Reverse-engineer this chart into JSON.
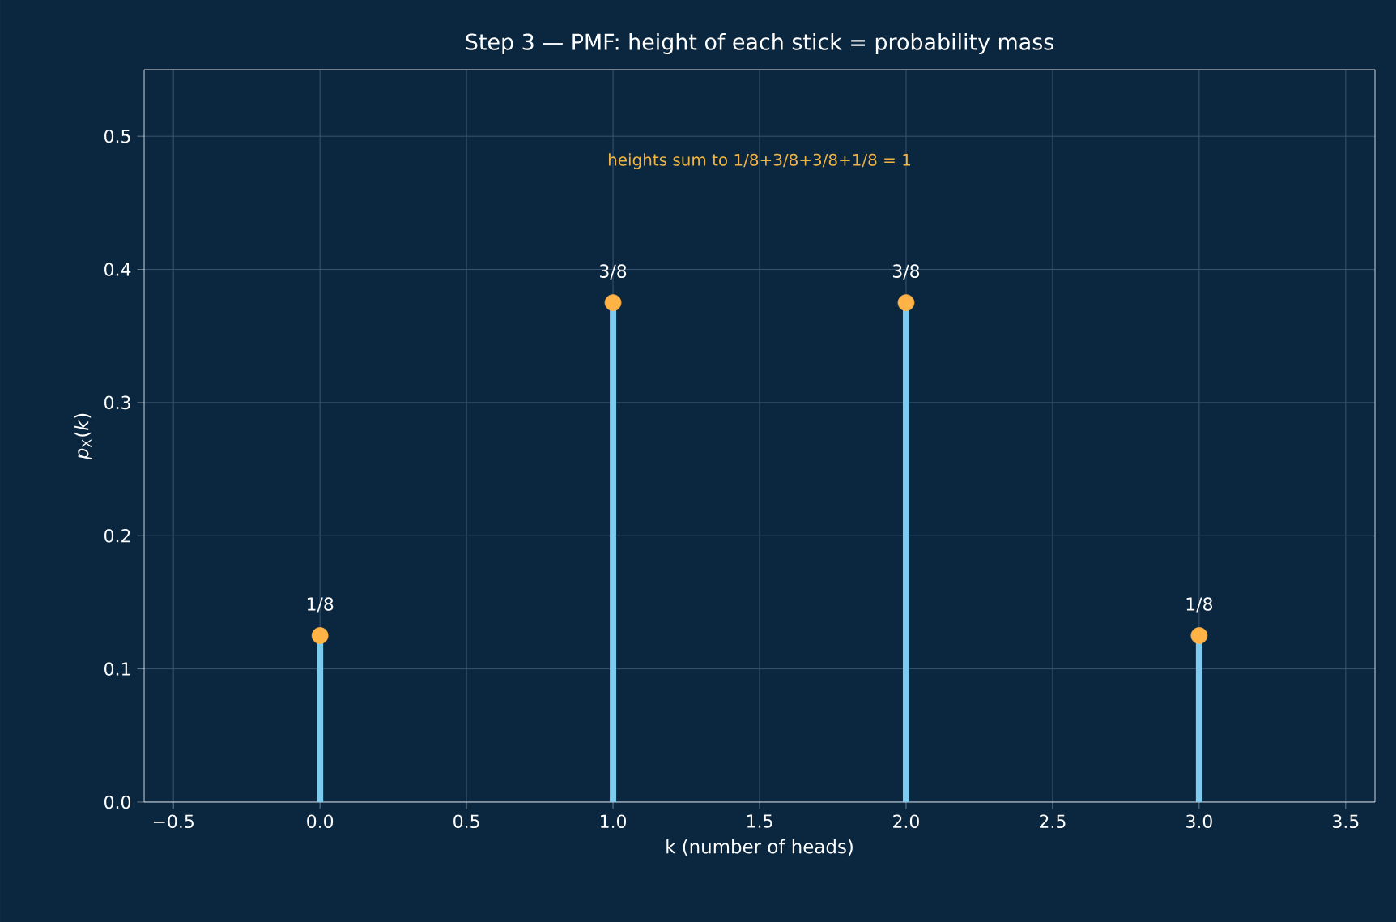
{
  "chart_data": {
    "type": "lollipop",
    "title": "Step 3 — PMF: height of each stick = probability mass",
    "xlabel": "k (number of heads)",
    "ylabel": "*p*$_{X}$(*k*)",
    "x": [
      0,
      1,
      2,
      3
    ],
    "values": [
      0.125,
      0.375,
      0.375,
      0.125
    ],
    "color": "#7ecbf0",
    "colors": [
      "#ffb347",
      "#ffb347",
      "#ffb347",
      "#ffb347"
    ],
    "marker": "circle",
    "value_labels": [
      "1/8",
      "3/8",
      "3/8",
      "1/8"
    ],
    "annotations": [
      "heights sum to 1/8+3/8+3/8+1/8 = 1"
    ],
    "xlim": [
      -0.6,
      3.6
    ],
    "xticks": [
      {
        "value": -0.5,
        "label": "−0.5"
      },
      {
        "value": 0,
        "label": "0.0"
      },
      {
        "value": 0.5,
        "label": "0.5"
      },
      {
        "value": 1,
        "label": "1.0"
      },
      {
        "value": 1.5,
        "label": "1.5"
      },
      {
        "value": 2,
        "label": "2.0"
      },
      {
        "value": 2.5,
        "label": "2.5"
      },
      {
        "value": 3,
        "label": "3.0"
      },
      {
        "value": 3.5,
        "label": "3.5"
      }
    ],
    "ylim": [
      0,
      0.55
    ],
    "yticks": [
      {
        "value": 0,
        "label": "0.0"
      },
      {
        "value": 0.1,
        "label": "0.1"
      },
      {
        "value": 0.2,
        "label": "0.2"
      },
      {
        "value": 0.3,
        "label": "0.3"
      },
      {
        "value": 0.4,
        "label": "0.4"
      },
      {
        "value": 0.5,
        "label": "0.5"
      }
    ],
    "grid": true
  }
}
